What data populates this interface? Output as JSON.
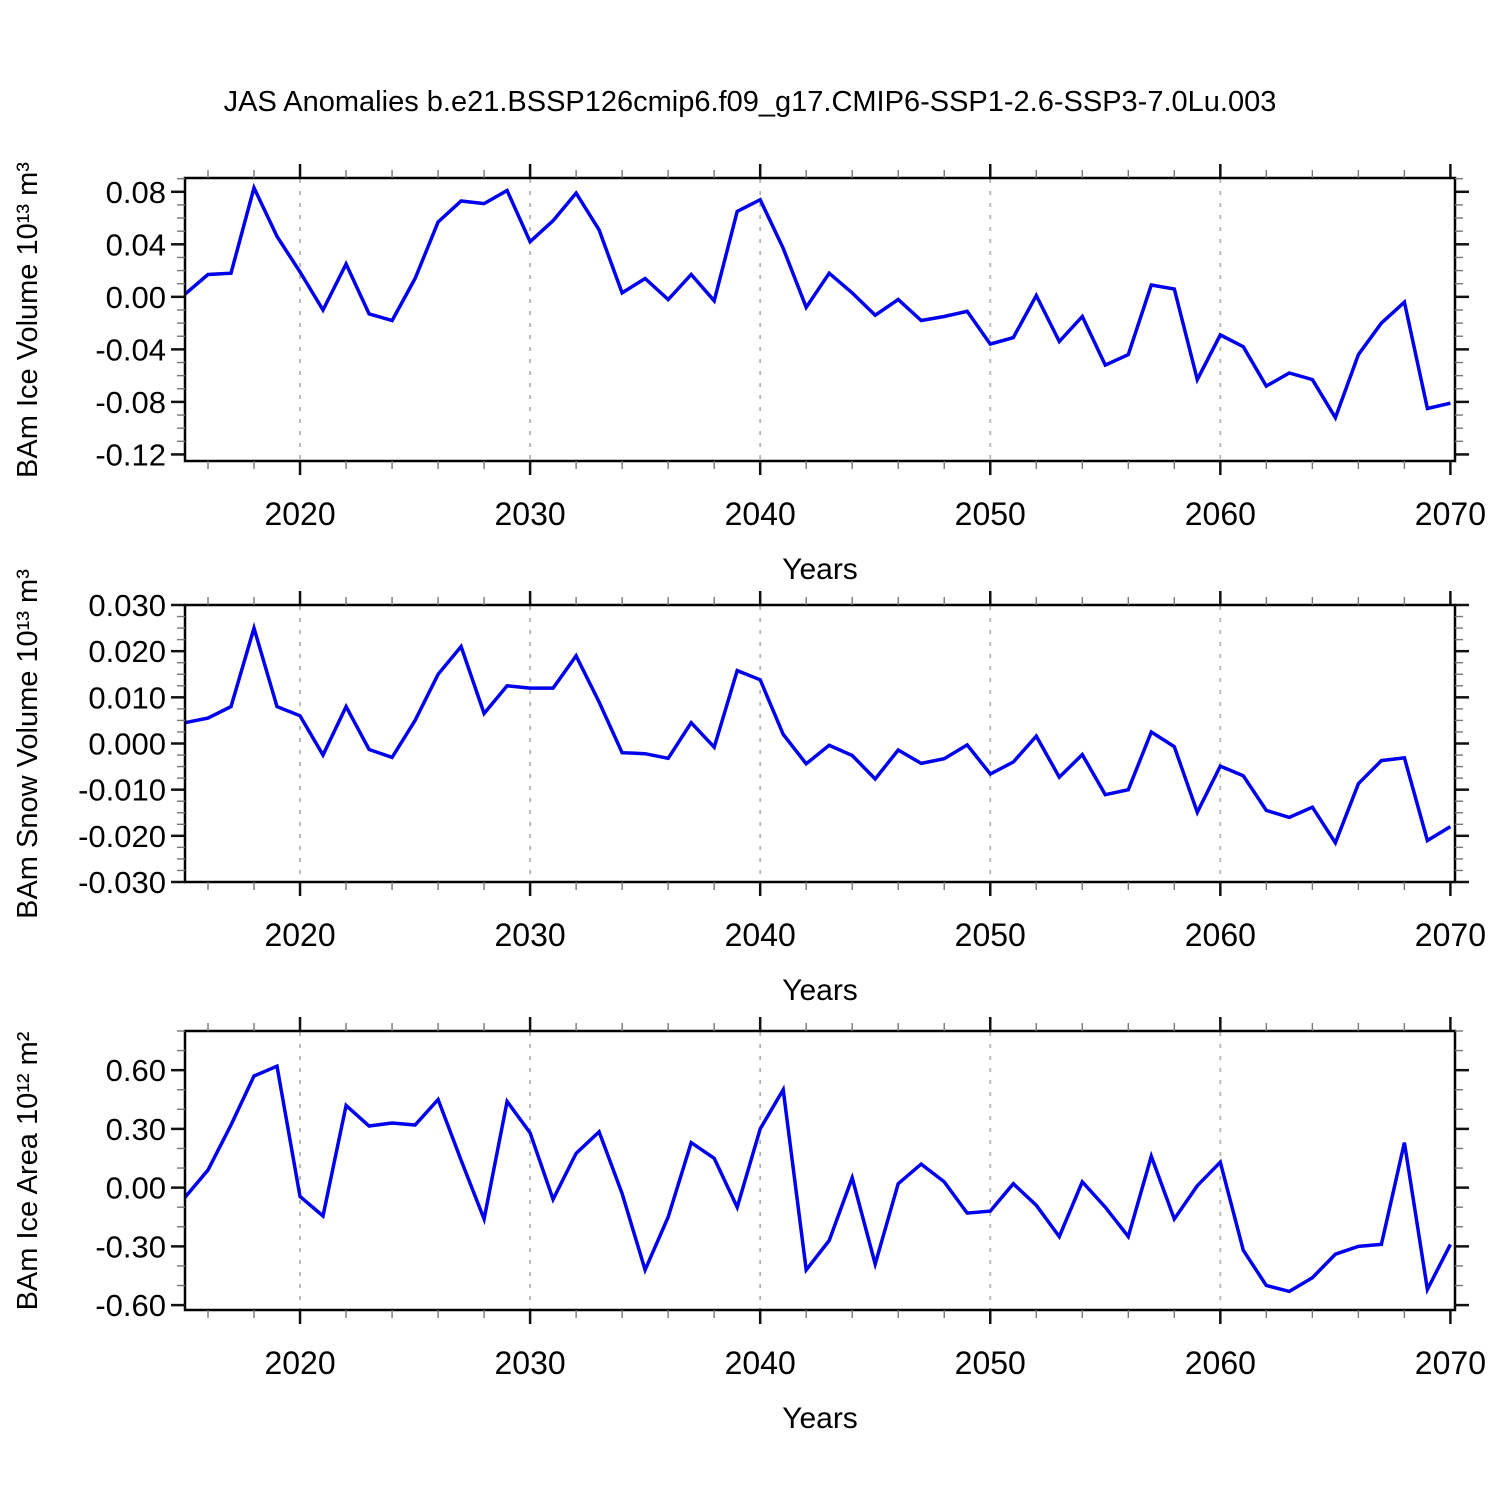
{
  "title": "JAS Anomalies b.e21.BSSP126cmip6.f09_g17.CMIP6-SSP1-2.6-SSP3-7.0Lu.003",
  "line_color": "#0000EE",
  "gridline_color": "#b4b4b4",
  "frame_color": "#000000",
  "chart_data": {
    "type": "line",
    "title": "JAS Anomalies b.e21.BSSP126cmip6.f09_g17.CMIP6-SSP1-2.6-SSP3-7.0Lu.003",
    "xlabel": "Years",
    "xlim": [
      2015,
      2070.2
    ],
    "x_major_ticks": [
      2020,
      2030,
      2040,
      2050,
      2060,
      2070
    ],
    "x_minor_tick_step": 2,
    "gridlines_at": [
      2020,
      2030,
      2040,
      2050,
      2060
    ],
    "grid_style": "dashed-vertical",
    "legend": "none",
    "x": [
      2015,
      2016,
      2017,
      2018,
      2019,
      2020,
      2021,
      2022,
      2023,
      2024,
      2025,
      2026,
      2027,
      2028,
      2029,
      2030,
      2031,
      2032,
      2033,
      2034,
      2035,
      2036,
      2037,
      2038,
      2039,
      2040,
      2041,
      2042,
      2043,
      2044,
      2045,
      2046,
      2047,
      2048,
      2049,
      2050,
      2051,
      2052,
      2053,
      2054,
      2055,
      2056,
      2057,
      2058,
      2059,
      2060,
      2061,
      2062,
      2063,
      2064,
      2065,
      2066,
      2067,
      2068,
      2069,
      2070
    ],
    "panels": [
      {
        "ylabel": "BAm Ice Volume 10¹³ m³",
        "ylim": [
          -0.125,
          0.0905
        ],
        "y_major_ticks": [
          0.08,
          0.04,
          0.0,
          -0.04,
          -0.08,
          -0.12
        ],
        "y_minor_start": -0.12,
        "y_minor_step": 0.01,
        "tick_decimals": 2,
        "values": [
          0.002,
          0.017,
          0.018,
          0.083,
          0.046,
          0.019,
          -0.01,
          0.025,
          -0.013,
          -0.018,
          0.014,
          0.057,
          0.073,
          0.071,
          0.081,
          0.042,
          0.058,
          0.079,
          0.051,
          0.003,
          0.014,
          -0.002,
          0.017,
          -0.003,
          0.065,
          0.074,
          0.037,
          -0.008,
          0.018,
          0.003,
          -0.014,
          -0.002,
          -0.018,
          -0.015,
          -0.011,
          -0.036,
          -0.031,
          0.001,
          -0.034,
          -0.015,
          -0.052,
          -0.044,
          0.009,
          0.006,
          -0.063,
          -0.029,
          -0.038,
          -0.068,
          -0.058,
          -0.063,
          -0.092,
          -0.044,
          -0.02,
          -0.004,
          -0.085,
          -0.081
        ]
      },
      {
        "ylabel": "BAm Snow Volume 10¹³ m³",
        "ylim": [
          -0.03,
          0.03
        ],
        "y_major_ticks": [
          0.03,
          0.02,
          0.01,
          0.0,
          -0.01,
          -0.02,
          -0.03
        ],
        "y_minor_start": -0.03,
        "y_minor_step": 0.0025,
        "tick_decimals": 3,
        "values": [
          0.0045,
          0.0055,
          0.008,
          0.025,
          0.008,
          0.006,
          -0.0025,
          0.008,
          -0.0013,
          -0.003,
          0.005,
          0.015,
          0.021,
          0.0065,
          0.0125,
          0.012,
          0.012,
          0.019,
          0.009,
          -0.002,
          -0.0022,
          -0.0032,
          0.0045,
          -0.0008,
          0.0158,
          0.0138,
          0.002,
          -0.0044,
          -0.0004,
          -0.0026,
          -0.0077,
          -0.0014,
          -0.0043,
          -0.0033,
          -0.0003,
          -0.0066,
          -0.004,
          0.0016,
          -0.0073,
          -0.0024,
          -0.0111,
          -0.01,
          0.0025,
          -0.0007,
          -0.0149,
          -0.0049,
          -0.007,
          -0.0145,
          -0.016,
          -0.0138,
          -0.0215,
          -0.0087,
          -0.0037,
          -0.0031,
          -0.021,
          -0.018
        ]
      },
      {
        "ylabel": "BAm Ice Area 10¹² m²",
        "ylim": [
          -0.625,
          0.8
        ],
        "y_major_ticks": [
          0.6,
          0.3,
          0.0,
          -0.3,
          -0.6
        ],
        "y_minor_start": -0.6,
        "y_minor_step": 0.1,
        "tick_decimals": 2,
        "values": [
          -0.05,
          0.09,
          0.32,
          0.57,
          0.62,
          -0.045,
          -0.145,
          0.42,
          0.315,
          0.33,
          0.32,
          0.45,
          0.14,
          -0.16,
          0.44,
          0.28,
          -0.06,
          0.175,
          0.285,
          -0.03,
          -0.42,
          -0.15,
          0.23,
          0.15,
          -0.1,
          0.3,
          0.5,
          -0.42,
          -0.27,
          0.05,
          -0.39,
          0.02,
          0.12,
          0.03,
          -0.13,
          -0.12,
          0.02,
          -0.09,
          -0.25,
          0.03,
          -0.1,
          -0.25,
          0.16,
          -0.16,
          0.01,
          0.13,
          -0.32,
          -0.5,
          -0.53,
          -0.46,
          -0.34,
          -0.3,
          -0.29,
          0.23,
          -0.52,
          -0.29
        ]
      }
    ]
  }
}
